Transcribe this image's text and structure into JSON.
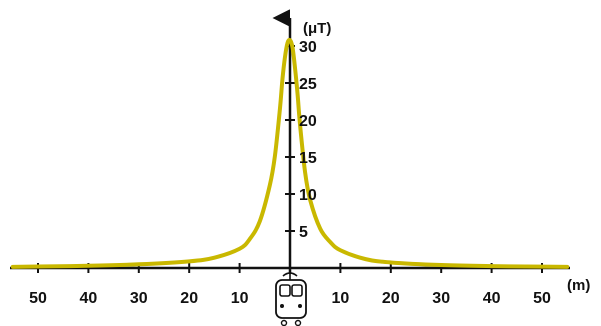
{
  "chart_data": {
    "type": "line",
    "x_unit": "(m)",
    "y_unit": "(μT)",
    "x_tick_labels": [
      "50",
      "40",
      "30",
      "20",
      "10",
      "10",
      "20",
      "30",
      "40",
      "50"
    ],
    "x_ticks": [
      -50,
      -40,
      -30,
      -20,
      -10,
      10,
      20,
      30,
      40,
      50
    ],
    "y_ticks": [
      5,
      10,
      15,
      20,
      25,
      30
    ],
    "y_tick_labels": [
      "5",
      "10",
      "15",
      "20",
      "25",
      "30"
    ],
    "xlim": [
      -55,
      55
    ],
    "ylim": [
      0,
      33
    ],
    "grid": false,
    "series": [
      {
        "color": "#c9b800",
        "x": [
          -55,
          -50,
          -40,
          -30,
          -20,
          -15,
          -10,
          -8,
          -6,
          -4,
          -3,
          -2,
          -1.5,
          -1,
          -0.5,
          0,
          0.5,
          1,
          1.5,
          2,
          3,
          4,
          6,
          8,
          10,
          15,
          20,
          30,
          40,
          50,
          55
        ],
        "y": [
          0.15,
          0.2,
          0.3,
          0.5,
          0.9,
          1.4,
          2.6,
          3.9,
          6.3,
          11.2,
          15.1,
          21.5,
          25.5,
          28.5,
          30.4,
          30.8,
          29.8,
          27.0,
          23.5,
          19.3,
          12.9,
          9.2,
          5.3,
          3.5,
          2.4,
          1.2,
          0.75,
          0.4,
          0.25,
          0.18,
          0.15
        ]
      }
    ]
  },
  "icons": {
    "train": "train-icon"
  }
}
